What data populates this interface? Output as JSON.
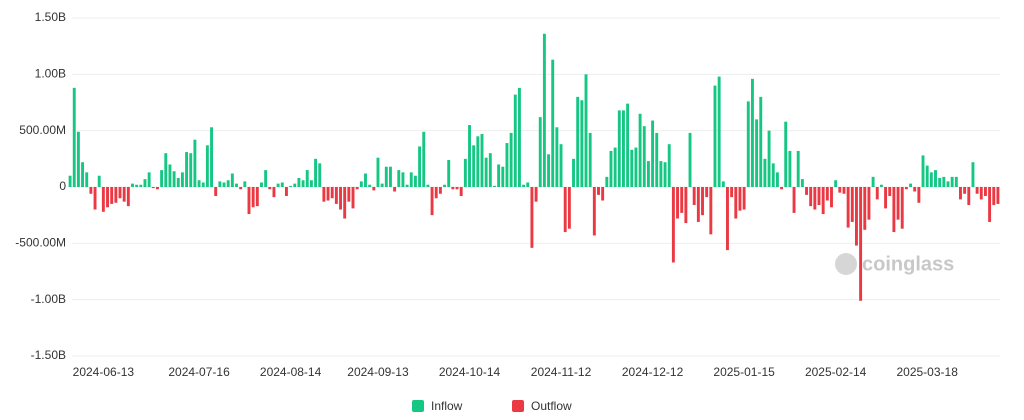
{
  "chart_data": {
    "type": "bar",
    "watermark": "coinglass",
    "legend": [
      {
        "name": "Inflow",
        "color": "#16c784"
      },
      {
        "name": "Outflow",
        "color": "#ea3943"
      }
    ],
    "ylim": [
      -1500,
      1500
    ],
    "yticks": [
      {
        "value": 1500,
        "label": "1.50B"
      },
      {
        "value": 1000,
        "label": "1.00B"
      },
      {
        "value": 500,
        "label": "500.00M"
      },
      0,
      {
        "value": -500,
        "label": "-500.00M"
      },
      {
        "value": -1000,
        "label": "-1.00B"
      },
      {
        "value": -1500,
        "label": "-1.50B"
      }
    ],
    "grid": true,
    "categories": [
      null,
      null,
      null,
      null,
      null,
      null,
      null,
      null,
      "2024-06-13",
      null,
      null,
      null,
      null,
      null,
      null,
      null,
      null,
      null,
      null,
      null,
      null,
      null,
      null,
      null,
      null,
      null,
      null,
      null,
      null,
      null,
      null,
      "2024-07-16",
      null,
      null,
      null,
      null,
      null,
      null,
      null,
      null,
      null,
      null,
      null,
      null,
      null,
      null,
      null,
      null,
      null,
      null,
      null,
      null,
      null,
      "2024-08-14",
      null,
      null,
      null,
      null,
      null,
      null,
      null,
      null,
      null,
      null,
      null,
      null,
      null,
      null,
      null,
      null,
      null,
      null,
      null,
      null,
      "2024-09-13",
      null,
      null,
      null,
      null,
      null,
      null,
      null,
      null,
      null,
      null,
      null,
      null,
      null,
      null,
      null,
      null,
      null,
      null,
      null,
      null,
      null,
      "2024-10-14",
      null,
      null,
      null,
      null,
      null,
      null,
      null,
      null,
      null,
      null,
      null,
      null,
      null,
      null,
      null,
      null,
      null,
      null,
      null,
      null,
      null,
      "2024-11-12",
      null,
      null,
      null,
      null,
      null,
      null,
      null,
      null,
      null,
      null,
      null,
      null,
      null,
      null,
      null,
      null,
      null,
      null,
      null,
      null,
      null,
      "2024-12-12",
      null,
      null,
      null,
      null,
      null,
      null,
      null,
      null,
      null,
      null,
      null,
      null,
      null,
      null,
      null,
      null,
      null,
      null,
      null,
      null,
      null,
      "2025-01-15",
      null,
      null,
      null,
      null,
      null,
      null,
      null,
      null,
      null,
      null,
      null,
      null,
      null,
      null,
      null,
      null,
      null,
      null,
      null,
      null,
      null,
      "2025-02-14",
      null,
      null,
      null,
      null,
      null,
      null,
      null,
      null,
      null,
      null,
      null,
      null,
      null,
      null,
      null,
      null,
      null,
      null,
      null,
      null,
      null,
      "2025-03-18",
      null,
      null,
      null,
      null,
      null,
      null,
      null,
      null,
      null,
      null,
      null,
      null,
      null,
      null,
      null,
      null,
      null
    ],
    "values": [
      100,
      880,
      490,
      220,
      130,
      -60,
      -200,
      100,
      -220,
      -180,
      -150,
      -140,
      -100,
      -130,
      -170,
      30,
      20,
      20,
      70,
      130,
      -10,
      -20,
      150,
      300,
      200,
      140,
      80,
      130,
      310,
      300,
      420,
      60,
      40,
      370,
      530,
      -80,
      50,
      40,
      60,
      120,
      30,
      -20,
      50,
      -240,
      -180,
      -170,
      40,
      150,
      -20,
      -90,
      30,
      40,
      -80,
      10,
      30,
      80,
      60,
      150,
      60,
      250,
      210,
      -130,
      -120,
      -100,
      -150,
      -200,
      -280,
      -130,
      -190,
      -20,
      50,
      120,
      20,
      -30,
      260,
      30,
      180,
      180,
      -40,
      150,
      130,
      20,
      130,
      100,
      360,
      490,
      20,
      -250,
      -100,
      -60,
      20,
      240,
      -20,
      -20,
      -80,
      250,
      550,
      370,
      450,
      470,
      260,
      300,
      10,
      200,
      180,
      390,
      480,
      820,
      880,
      20,
      40,
      -540,
      -130,
      620,
      1360,
      290,
      1130,
      530,
      380,
      -400,
      -370,
      250,
      800,
      770,
      1000,
      480,
      -430,
      -70,
      -120,
      90,
      320,
      350,
      680,
      680,
      740,
      330,
      350,
      650,
      540,
      230,
      590,
      480,
      230,
      220,
      380,
      -670,
      -280,
      -230,
      -320,
      480,
      -160,
      -310,
      -250,
      -90,
      -420,
      900,
      980,
      50,
      -560,
      -90,
      -280,
      -210,
      -200,
      760,
      960,
      600,
      800,
      250,
      500,
      210,
      130,
      -20,
      580,
      320,
      -230,
      320,
      70,
      -70,
      -170,
      -200,
      -160,
      -240,
      -120,
      -180,
      60,
      -50,
      -60,
      -360,
      -310,
      -520,
      -1010,
      -380,
      -290,
      90,
      -110,
      20,
      -190,
      -80,
      -400,
      -290,
      -370,
      -20,
      30,
      -40,
      -140,
      280,
      190,
      130,
      150,
      80,
      90,
      50,
      90,
      90,
      -110,
      -60,
      -160,
      220,
      -60,
      -110,
      -80,
      -310,
      -160,
      -150
    ]
  }
}
